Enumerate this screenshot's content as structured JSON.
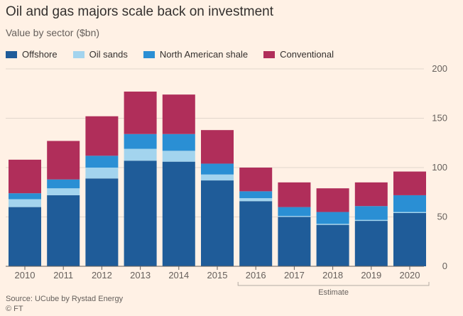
{
  "title": "Oil and gas majors scale back on investment",
  "subtitle": "Value by sector ($bn)",
  "source": "Source: UCube by Rystad Energy",
  "credit": "© FT",
  "colors": {
    "background": "#fff1e5",
    "gridline": "#e1d6cd",
    "axis": "#66605c",
    "Offshore": "#1f5c99",
    "Oil sands": "#a3d4ee",
    "North American shale": "#2a8fd4",
    "Conventional": "#b02e5a"
  },
  "chart_data": {
    "type": "bar",
    "stacked": true,
    "categories": [
      "2010",
      "2011",
      "2012",
      "2013",
      "2014",
      "2015",
      "2016",
      "2017",
      "2018",
      "2019",
      "2020"
    ],
    "series": [
      {
        "name": "Offshore",
        "values": [
          60,
          72,
          89,
          107,
          106,
          87,
          66,
          50,
          42,
          46,
          54
        ]
      },
      {
        "name": "Oil sands",
        "values": [
          8,
          7,
          11,
          12,
          11,
          6,
          3,
          1,
          1,
          1,
          1
        ]
      },
      {
        "name": "North American shale",
        "values": [
          6,
          9,
          12,
          15,
          17,
          11,
          7,
          9,
          12,
          14,
          17
        ]
      },
      {
        "name": "Conventional",
        "values": [
          34,
          39,
          40,
          43,
          40,
          34,
          24,
          25,
          24,
          24,
          24
        ]
      }
    ],
    "ylim": [
      0,
      200
    ],
    "yticks": [
      0,
      50,
      100,
      150,
      200
    ],
    "y_axis_side": "right",
    "grid": true,
    "legend_position": "top-left",
    "annotations": [
      {
        "text": "Estimate",
        "categories": [
          "2016",
          "2017",
          "2018",
          "2019",
          "2020"
        ]
      }
    ]
  }
}
